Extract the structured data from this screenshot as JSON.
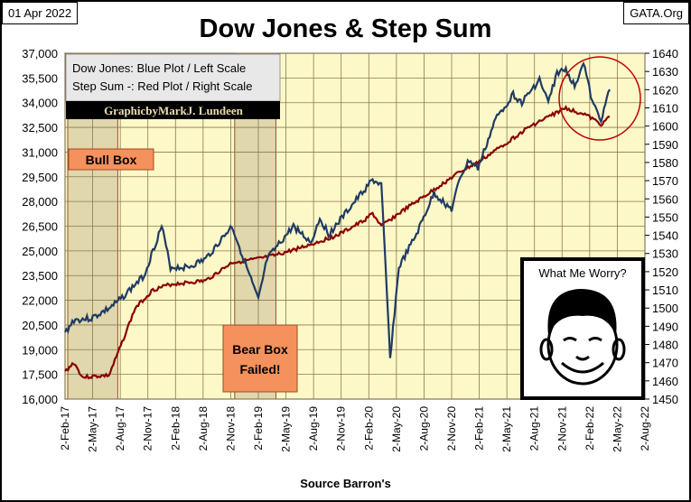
{
  "header": {
    "date": "01 Apr 2022",
    "site": "GATA.Org",
    "title": "Dow Jones & Step Sum",
    "source": "Source Barron's"
  },
  "legend": {
    "line1": "Dow Jones: Blue Plot / Left Scale",
    "line2": "Step Sum -: Red Plot / Right Scale",
    "credit": "GraphicbyMarkJ. Lundeen"
  },
  "annotations": {
    "bull": "Bull Box",
    "bear1": "Bear Box",
    "bear2": "Failed!",
    "worry": "What Me Worry?"
  },
  "colors": {
    "dow": "#1f3b63",
    "step": "#8b0000",
    "plot_bg": "#fdf8c8",
    "box": "#f4915c"
  },
  "chart_data": {
    "type": "line",
    "title": "Dow Jones & Step Sum",
    "xlabel": "Source Barron's",
    "x_ticks": [
      "2-Feb-17",
      "2-May-17",
      "2-Aug-17",
      "2-Nov-17",
      "2-Feb-18",
      "2-Aug-18",
      "2-Nov-18",
      "2-Feb-19",
      "2-May-19",
      "2-Aug-19",
      "2-Nov-19",
      "2-Feb-20",
      "2-May-20",
      "2-Aug-20",
      "2-Nov-20",
      "2-Feb-21",
      "2-May-21",
      "2-Aug-21",
      "2-Nov-21",
      "2-Feb-22",
      "2-May-22",
      "2-Aug-22"
    ],
    "y_left": {
      "min": 16000,
      "max": 37000,
      "ticks": [
        "16,000",
        "17,500",
        "19,000",
        "20,500",
        "22,000",
        "23,500",
        "25,000",
        "26,500",
        "28,000",
        "29,500",
        "31,000",
        "32,500",
        "34,000",
        "35,500",
        "37,000"
      ]
    },
    "y_right": {
      "min": 1450,
      "max": 1640,
      "ticks": [
        "1450",
        "1460",
        "1470",
        "1480",
        "1490",
        "1500",
        "1510",
        "1520",
        "1530",
        "1540",
        "1550",
        "1560",
        "1570",
        "1580",
        "1590",
        "1600",
        "1610",
        "1620",
        "1630",
        "1640"
      ]
    },
    "x_months_from_feb2017": [
      0,
      66
    ],
    "series": [
      {
        "name": "Dow Jones",
        "axis": "left",
        "points": [
          [
            0,
            20000
          ],
          [
            1,
            20800
          ],
          [
            3,
            20900
          ],
          [
            5,
            21500
          ],
          [
            6,
            21900
          ],
          [
            9,
            23500
          ],
          [
            11,
            26500
          ],
          [
            12,
            24000
          ],
          [
            14,
            24000
          ],
          [
            16,
            24500
          ],
          [
            19,
            26500
          ],
          [
            20,
            25000
          ],
          [
            22,
            22000
          ],
          [
            23,
            24500
          ],
          [
            26,
            26500
          ],
          [
            28,
            25500
          ],
          [
            29,
            27000
          ],
          [
            30,
            26000
          ],
          [
            33,
            28000
          ],
          [
            35,
            29300
          ],
          [
            36,
            29000
          ],
          [
            37,
            18500
          ],
          [
            38,
            24000
          ],
          [
            40,
            26000
          ],
          [
            42,
            28500
          ],
          [
            44,
            27500
          ],
          [
            45,
            29500
          ],
          [
            46,
            30500
          ],
          [
            47,
            30000
          ],
          [
            49,
            33000
          ],
          [
            51,
            34500
          ],
          [
            52,
            34000
          ],
          [
            54,
            35400
          ],
          [
            55,
            34000
          ],
          [
            56,
            35800
          ],
          [
            57,
            36000
          ],
          [
            58,
            35000
          ],
          [
            59,
            36500
          ],
          [
            60,
            34000
          ],
          [
            61,
            33000
          ],
          [
            62,
            34800
          ]
        ]
      },
      {
        "name": "Step Sum",
        "axis": "right",
        "points": [
          [
            0,
            1465
          ],
          [
            1,
            1470
          ],
          [
            2,
            1462
          ],
          [
            5,
            1463
          ],
          [
            6,
            1475
          ],
          [
            8,
            1500
          ],
          [
            10,
            1510
          ],
          [
            12,
            1513
          ],
          [
            16,
            1515
          ],
          [
            19,
            1525
          ],
          [
            22,
            1527
          ],
          [
            24,
            1529
          ],
          [
            28,
            1535
          ],
          [
            31,
            1540
          ],
          [
            34,
            1548
          ],
          [
            35,
            1552
          ],
          [
            36,
            1545
          ],
          [
            38,
            1552
          ],
          [
            42,
            1565
          ],
          [
            45,
            1575
          ],
          [
            47,
            1580
          ],
          [
            50,
            1590
          ],
          [
            53,
            1600
          ],
          [
            55,
            1605
          ],
          [
            57,
            1610
          ],
          [
            58,
            1608
          ],
          [
            59,
            1607
          ],
          [
            61,
            1601
          ],
          [
            62,
            1605
          ]
        ]
      }
    ],
    "shaded_ranges_months": [
      [
        0,
        6
      ],
      [
        19,
        24
      ]
    ],
    "grid": true
  }
}
